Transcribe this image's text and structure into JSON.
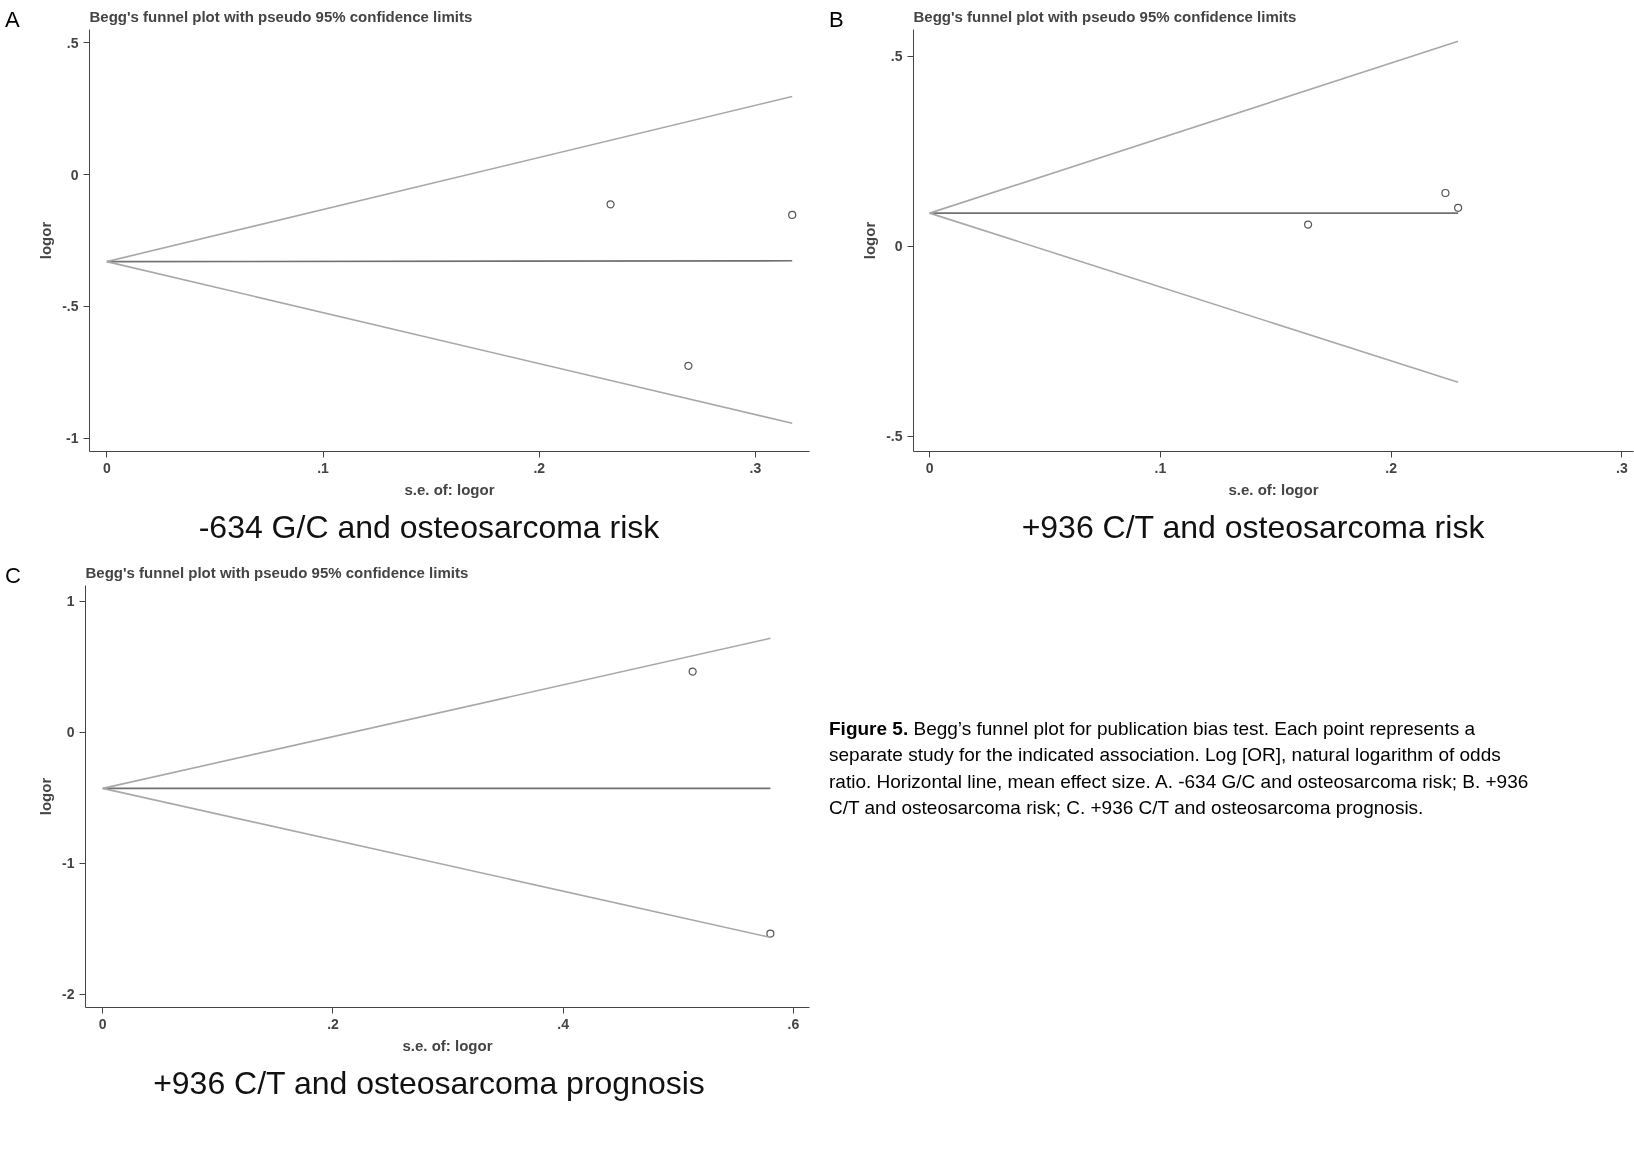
{
  "chart_data": [
    {
      "type": "scatter",
      "title": "Begg's funnel plot with pseudo 95% confidence limits",
      "xlabel": "s.e. of: logor",
      "ylabel": "logor",
      "annotations": [
        "A",
        "-634 G/C and osteosarcoma risk"
      ],
      "xlim": [
        -0.008,
        0.325
      ],
      "ylim": [
        -1.05,
        0.55
      ],
      "xticks": [
        {
          "value": 0,
          "label": "0"
        },
        {
          "value": 0.1,
          "label": ".1"
        },
        {
          "value": 0.2,
          "label": ".2"
        },
        {
          "value": 0.3,
          "label": ".3"
        }
      ],
      "yticks": [
        {
          "value": -1,
          "label": "-1"
        },
        {
          "value": -0.5,
          "label": "-.5"
        },
        {
          "value": 0,
          "label": "0"
        },
        {
          "value": 0.5,
          "label": ".5"
        }
      ],
      "series": [
        {
          "type": "scatter",
          "marker": "circle",
          "color": "#555555",
          "x": [
            0.233,
            0.317,
            0.269
          ],
          "values": [
            -0.113,
            -0.153,
            -0.725
          ]
        },
        {
          "type": "line",
          "color": "#707070",
          "x": [
            0,
            0.317
          ],
          "values": [
            -0.33,
            -0.327
          ]
        },
        {
          "type": "line",
          "color": "#a8a8a8",
          "x": [
            0,
            0.317
          ],
          "values": [
            -0.33,
            0.296
          ]
        },
        {
          "type": "line",
          "color": "#a8a8a8",
          "x": [
            0,
            0.317
          ],
          "values": [
            -0.33,
            -0.943
          ]
        }
      ]
    },
    {
      "type": "scatter",
      "title": "Begg's funnel plot with pseudo 95% confidence limits",
      "xlabel": "s.e. of: logor",
      "ylabel": "logor",
      "annotations": [
        "B",
        "+936 C/T  and osteosarcoma risk"
      ],
      "xlim": [
        -0.007,
        0.305
      ],
      "ylim": [
        -0.54,
        0.57
      ],
      "xticks": [
        {
          "value": 0,
          "label": "0"
        },
        {
          "value": 0.1,
          "label": ".1"
        },
        {
          "value": 0.2,
          "label": ".2"
        },
        {
          "value": 0.3,
          "label": ".3"
        }
      ],
      "yticks": [
        {
          "value": -0.5,
          "label": "-.5"
        },
        {
          "value": 0,
          "label": "0"
        },
        {
          "value": 0.5,
          "label": ".5"
        }
      ],
      "series": [
        {
          "type": "scatter",
          "marker": "circle",
          "color": "#555555",
          "x": [
            0.2235,
            0.229,
            0.164
          ],
          "values": [
            0.14,
            0.101,
            0.057
          ]
        },
        {
          "type": "line",
          "color": "#707070",
          "x": [
            0,
            0.229
          ],
          "values": [
            0.087,
            0.087
          ]
        },
        {
          "type": "line",
          "color": "#a8a8a8",
          "x": [
            0,
            0.229
          ],
          "values": [
            0.087,
            0.539
          ]
        },
        {
          "type": "line",
          "color": "#a8a8a8",
          "x": [
            0,
            0.229
          ],
          "values": [
            0.087,
            -0.358
          ]
        }
      ]
    },
    {
      "type": "scatter",
      "title": "Begg's funnel plot with pseudo 95% confidence limits",
      "xlabel": "s.e. of: logor",
      "ylabel": "logor",
      "annotations": [
        "C",
        "+936 C/T and osteosarcoma prognosis"
      ],
      "xlim": [
        -0.015,
        0.614
      ],
      "ylim": [
        -2.1,
        1.12
      ],
      "xticks": [
        {
          "value": 0,
          "label": "0"
        },
        {
          "value": 0.2,
          "label": ".2"
        },
        {
          "value": 0.4,
          "label": ".4"
        },
        {
          "value": 0.6,
          "label": ".6"
        }
      ],
      "yticks": [
        -2,
        -1,
        0,
        1
      ],
      "series": [
        {
          "type": "scatter",
          "marker": "circle",
          "color": "#555555",
          "x": [
            0.5125,
            0.58
          ],
          "values": [
            0.463,
            -1.536
          ]
        },
        {
          "type": "line",
          "color": "#707070",
          "x": [
            0,
            0.58
          ],
          "values": [
            -0.428,
            -0.428
          ]
        },
        {
          "type": "line",
          "color": "#a8a8a8",
          "x": [
            0,
            0.58
          ],
          "values": [
            -0.428,
            0.717
          ]
        },
        {
          "type": "line",
          "color": "#a8a8a8",
          "x": [
            0,
            0.58
          ],
          "values": [
            -0.428,
            -1.565
          ]
        }
      ]
    },
    {
      "type": "other",
      "annotations": [
        "Figure 5.",
        "Begg’s funnel plot for publication bias test. Each point represents a separate study for the indicated association. Log [OR], natural logarithm of odds ratio. Horizontal line, mean effect size. A. -634 G/C and osteosarcoma risk; B. +936 C/T and osteosarcoma risk; C. +936 C/T and osteosarcoma prognosis."
      ]
    }
  ]
}
